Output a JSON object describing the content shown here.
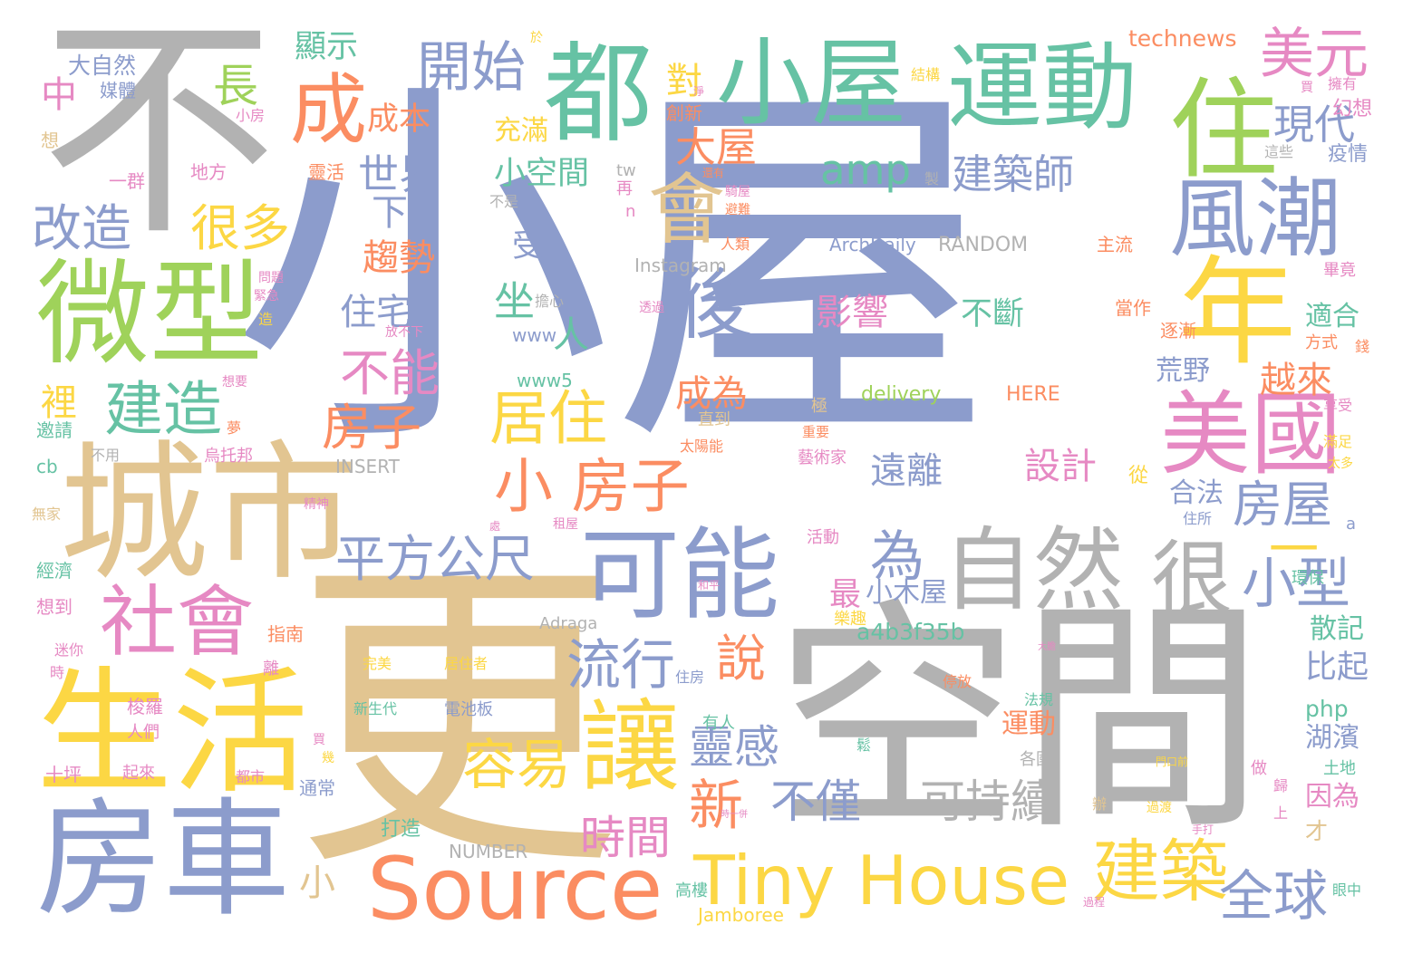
{
  "palette": {
    "blue": "#8c9ccc",
    "gray": "#b2b2b2",
    "tan": "#e2c591",
    "yellow": "#fcd744",
    "green": "#9fd25a",
    "teal": "#66c2a4",
    "orange": "#fb8d62",
    "pink": "#e689c3",
    "white": "#ffffff"
  },
  "words": [
    {
      "text": "小屋",
      "color": "blue"
    },
    {
      "text": "更",
      "color": "tan"
    },
    {
      "text": "空間",
      "color": "gray"
    },
    {
      "text": "不",
      "color": "gray"
    },
    {
      "text": "城市",
      "color": "tan"
    },
    {
      "text": "房車",
      "color": "blue"
    },
    {
      "text": "生活",
      "color": "yellow"
    },
    {
      "text": "微型",
      "color": "green"
    },
    {
      "text": "都",
      "color": "teal"
    },
    {
      "text": "小屋",
      "color": "teal"
    },
    {
      "text": "運動",
      "color": "teal"
    },
    {
      "text": "住",
      "color": "green"
    },
    {
      "text": "風潮",
      "color": "blue"
    },
    {
      "text": "年",
      "color": "yellow"
    },
    {
      "text": "美國",
      "color": "pink"
    },
    {
      "text": "自然",
      "color": "gray"
    },
    {
      "text": "很",
      "color": "gray"
    },
    {
      "text": "可能",
      "color": "blue"
    },
    {
      "text": "讓",
      "color": "yellow"
    },
    {
      "text": "Source",
      "color": "orange"
    },
    {
      "text": "Tiny House",
      "color": "yellow"
    },
    {
      "text": "社會",
      "color": "pink"
    },
    {
      "text": "成",
      "color": "orange"
    },
    {
      "text": "會",
      "color": "tan"
    },
    {
      "text": "後",
      "color": "blue"
    },
    {
      "text": "開始",
      "color": "blue"
    },
    {
      "text": "長",
      "color": "green"
    },
    {
      "text": "美元",
      "color": "pink"
    },
    {
      "text": "現代",
      "color": "blue"
    },
    {
      "text": "改造",
      "color": "blue"
    },
    {
      "text": "很多",
      "color": "yellow"
    },
    {
      "text": "建造",
      "color": "teal"
    },
    {
      "text": "世界",
      "color": "blue"
    },
    {
      "text": "平方公尺",
      "color": "blue"
    },
    {
      "text": "居住",
      "color": "yellow"
    },
    {
      "text": "小 房子",
      "color": "orange"
    },
    {
      "text": "房子",
      "color": "orange"
    },
    {
      "text": "不能",
      "color": "pink"
    },
    {
      "text": "建築師",
      "color": "blue"
    },
    {
      "text": "amp",
      "color": "teal"
    },
    {
      "text": "大屋",
      "color": "orange"
    },
    {
      "text": "為",
      "color": "blue"
    },
    {
      "text": "一",
      "color": "yellow"
    },
    {
      "text": "小型",
      "color": "blue"
    },
    {
      "text": "房屋",
      "color": "blue"
    },
    {
      "text": "流行",
      "color": "blue"
    },
    {
      "text": "說",
      "color": "orange"
    },
    {
      "text": "容易",
      "color": "yellow"
    },
    {
      "text": "新",
      "color": "orange"
    },
    {
      "text": "靈感",
      "color": "blue"
    },
    {
      "text": "建築",
      "color": "yellow"
    },
    {
      "text": "全球",
      "color": "blue"
    },
    {
      "text": "時間",
      "color": "pink"
    },
    {
      "text": "不僅",
      "color": "blue"
    },
    {
      "text": "可持續",
      "color": "gray"
    },
    {
      "text": "設計",
      "color": "pink"
    },
    {
      "text": "遠離",
      "color": "blue"
    },
    {
      "text": "影響",
      "color": "pink"
    },
    {
      "text": "成為",
      "color": "orange"
    },
    {
      "text": "不斷",
      "color": "teal"
    },
    {
      "text": "越來",
      "color": "orange"
    },
    {
      "text": "顯示",
      "color": "teal"
    },
    {
      "text": "成本",
      "color": "orange"
    },
    {
      "text": "對",
      "color": "yellow"
    },
    {
      "text": "小空間",
      "color": "teal"
    },
    {
      "text": "充滿",
      "color": "yellow"
    },
    {
      "text": "趨勢",
      "color": "orange"
    },
    {
      "text": "下",
      "color": "blue"
    },
    {
      "text": "坐",
      "color": "teal"
    },
    {
      "text": "人",
      "color": "teal"
    },
    {
      "text": "住宅",
      "color": "blue"
    },
    {
      "text": "受",
      "color": "blue"
    },
    {
      "text": "technews",
      "color": "orange"
    },
    {
      "text": "中",
      "color": "pink"
    },
    {
      "text": "大自然",
      "color": "blue"
    },
    {
      "text": "裡",
      "color": "yellow"
    },
    {
      "text": "小",
      "color": "tan"
    },
    {
      "text": "適合",
      "color": "teal"
    },
    {
      "text": "荒野",
      "color": "blue"
    },
    {
      "text": "比起",
      "color": "blue"
    },
    {
      "text": "散記",
      "color": "teal"
    },
    {
      "text": "湖濱",
      "color": "blue"
    },
    {
      "text": "因為",
      "color": "pink"
    },
    {
      "text": "合法",
      "color": "blue"
    },
    {
      "text": "最",
      "color": "pink"
    },
    {
      "text": "小木屋",
      "color": "blue"
    },
    {
      "text": "a4b3f35b",
      "color": "teal"
    },
    {
      "text": "運動",
      "color": "orange"
    },
    {
      "text": "疫情",
      "color": "blue"
    },
    {
      "text": "幻想",
      "color": "pink"
    },
    {
      "text": "創新",
      "color": "orange"
    },
    {
      "text": "靈活",
      "color": "orange"
    },
    {
      "text": "地方",
      "color": "pink"
    },
    {
      "text": "一群",
      "color": "pink"
    },
    {
      "text": "媒體",
      "color": "blue"
    },
    {
      "text": "小房",
      "color": "pink"
    },
    {
      "text": "想",
      "color": "tan"
    },
    {
      "text": "ArchDaily",
      "color": "blue"
    },
    {
      "text": "RANDOM",
      "color": "gray"
    },
    {
      "text": "Instagram",
      "color": "gray"
    },
    {
      "text": "www",
      "color": "blue"
    },
    {
      "text": "www5",
      "color": "teal"
    },
    {
      "text": "delivery",
      "color": "green"
    },
    {
      "text": "HERE",
      "color": "orange"
    },
    {
      "text": "INSERT",
      "color": "gray"
    },
    {
      "text": "Adraga",
      "color": "gray"
    },
    {
      "text": "php",
      "color": "teal"
    },
    {
      "text": "NUMBER",
      "color": "gray"
    },
    {
      "text": "Jamboree",
      "color": "yellow"
    },
    {
      "text": "cb",
      "color": "teal"
    },
    {
      "text": "tw",
      "color": "gray"
    },
    {
      "text": "n",
      "color": "pink"
    },
    {
      "text": "再",
      "color": "pink"
    },
    {
      "text": "不是",
      "color": "gray"
    },
    {
      "text": "直到",
      "color": "tan"
    },
    {
      "text": "太陽能",
      "color": "orange"
    },
    {
      "text": "藝術家",
      "color": "pink"
    },
    {
      "text": "重要",
      "color": "orange"
    },
    {
      "text": "極",
      "color": "tan"
    },
    {
      "text": "烏托邦",
      "color": "pink"
    },
    {
      "text": "邀請",
      "color": "teal"
    },
    {
      "text": "夢",
      "color": "orange"
    },
    {
      "text": "不用",
      "color": "gray"
    },
    {
      "text": "無家",
      "color": "tan"
    },
    {
      "text": "經濟",
      "color": "teal"
    },
    {
      "text": "想到",
      "color": "pink"
    },
    {
      "text": "指南",
      "color": "orange"
    },
    {
      "text": "迷你",
      "color": "pink"
    },
    {
      "text": "時",
      "color": "pink"
    },
    {
      "text": "梭羅",
      "color": "pink"
    },
    {
      "text": "人們",
      "color": "pink"
    },
    {
      "text": "十坪",
      "color": "pink"
    },
    {
      "text": "起來",
      "color": "pink"
    },
    {
      "text": "都市",
      "color": "pink"
    },
    {
      "text": "通常",
      "color": "blue"
    },
    {
      "text": "打造",
      "color": "teal"
    },
    {
      "text": "有人",
      "color": "teal"
    },
    {
      "text": "高樓",
      "color": "teal"
    },
    {
      "text": "活動",
      "color": "pink"
    },
    {
      "text": "和平",
      "color": "pink"
    },
    {
      "text": "樂趣",
      "color": "yellow"
    },
    {
      "text": "居住者",
      "color": "yellow"
    },
    {
      "text": "完美",
      "color": "yellow"
    },
    {
      "text": "新生代",
      "color": "teal"
    },
    {
      "text": "電池板",
      "color": "blue"
    },
    {
      "text": "停放",
      "color": "orange"
    },
    {
      "text": "法規",
      "color": "teal"
    },
    {
      "text": "鬆",
      "color": "teal"
    },
    {
      "text": "各國",
      "color": "gray"
    },
    {
      "text": "做",
      "color": "pink"
    },
    {
      "text": "歸",
      "color": "pink"
    },
    {
      "text": "門口前",
      "color": "yellow"
    },
    {
      "text": "過渡",
      "color": "yellow"
    },
    {
      "text": "辦",
      "color": "tan"
    },
    {
      "text": "上",
      "color": "pink"
    },
    {
      "text": "土地",
      "color": "teal"
    },
    {
      "text": "才",
      "color": "tan"
    },
    {
      "text": "眼中",
      "color": "teal"
    },
    {
      "text": "享受",
      "color": "pink"
    },
    {
      "text": "滿足",
      "color": "yellow"
    },
    {
      "text": "太多",
      "color": "yellow"
    },
    {
      "text": "畢竟",
      "color": "pink"
    },
    {
      "text": "方式",
      "color": "orange"
    },
    {
      "text": "錢",
      "color": "orange"
    },
    {
      "text": "逐漸",
      "color": "orange"
    },
    {
      "text": "當作",
      "color": "orange"
    },
    {
      "text": "主流",
      "color": "orange"
    },
    {
      "text": "這些",
      "color": "gray"
    },
    {
      "text": "擁有",
      "color": "pink"
    },
    {
      "text": "買",
      "color": "pink"
    },
    {
      "text": "結構",
      "color": "yellow"
    },
    {
      "text": "淨",
      "color": "pink"
    },
    {
      "text": "於",
      "color": "yellow"
    },
    {
      "text": "還有",
      "color": "orange"
    },
    {
      "text": "騎屋",
      "color": "pink"
    },
    {
      "text": "人類",
      "color": "orange"
    },
    {
      "text": "避難",
      "color": "orange"
    },
    {
      "text": "問題",
      "color": "pink"
    },
    {
      "text": "緊急",
      "color": "pink"
    },
    {
      "text": "造",
      "color": "yellow"
    },
    {
      "text": "擔心",
      "color": "gray"
    },
    {
      "text": "放不下",
      "color": "pink"
    },
    {
      "text": "透過",
      "color": "pink"
    },
    {
      "text": "想要",
      "color": "pink"
    },
    {
      "text": "精神",
      "color": "pink"
    },
    {
      "text": "處",
      "color": "pink"
    },
    {
      "text": "租屋",
      "color": "pink"
    },
    {
      "text": "從",
      "color": "yellow"
    },
    {
      "text": "住所",
      "color": "blue"
    },
    {
      "text": "a",
      "color": "blue"
    },
    {
      "text": "環保",
      "color": "teal"
    },
    {
      "text": "住房",
      "color": "blue"
    },
    {
      "text": "離",
      "color": "pink"
    },
    {
      "text": "買",
      "color": "pink"
    },
    {
      "text": "幾",
      "color": "yellow"
    },
    {
      "text": "時一併",
      "color": "pink"
    },
    {
      "text": "過程",
      "color": "pink"
    },
    {
      "text": "大膽",
      "color": "pink"
    },
    {
      "text": "製",
      "color": "gray"
    },
    {
      "text": "手打",
      "color": "pink"
    }
  ]
}
